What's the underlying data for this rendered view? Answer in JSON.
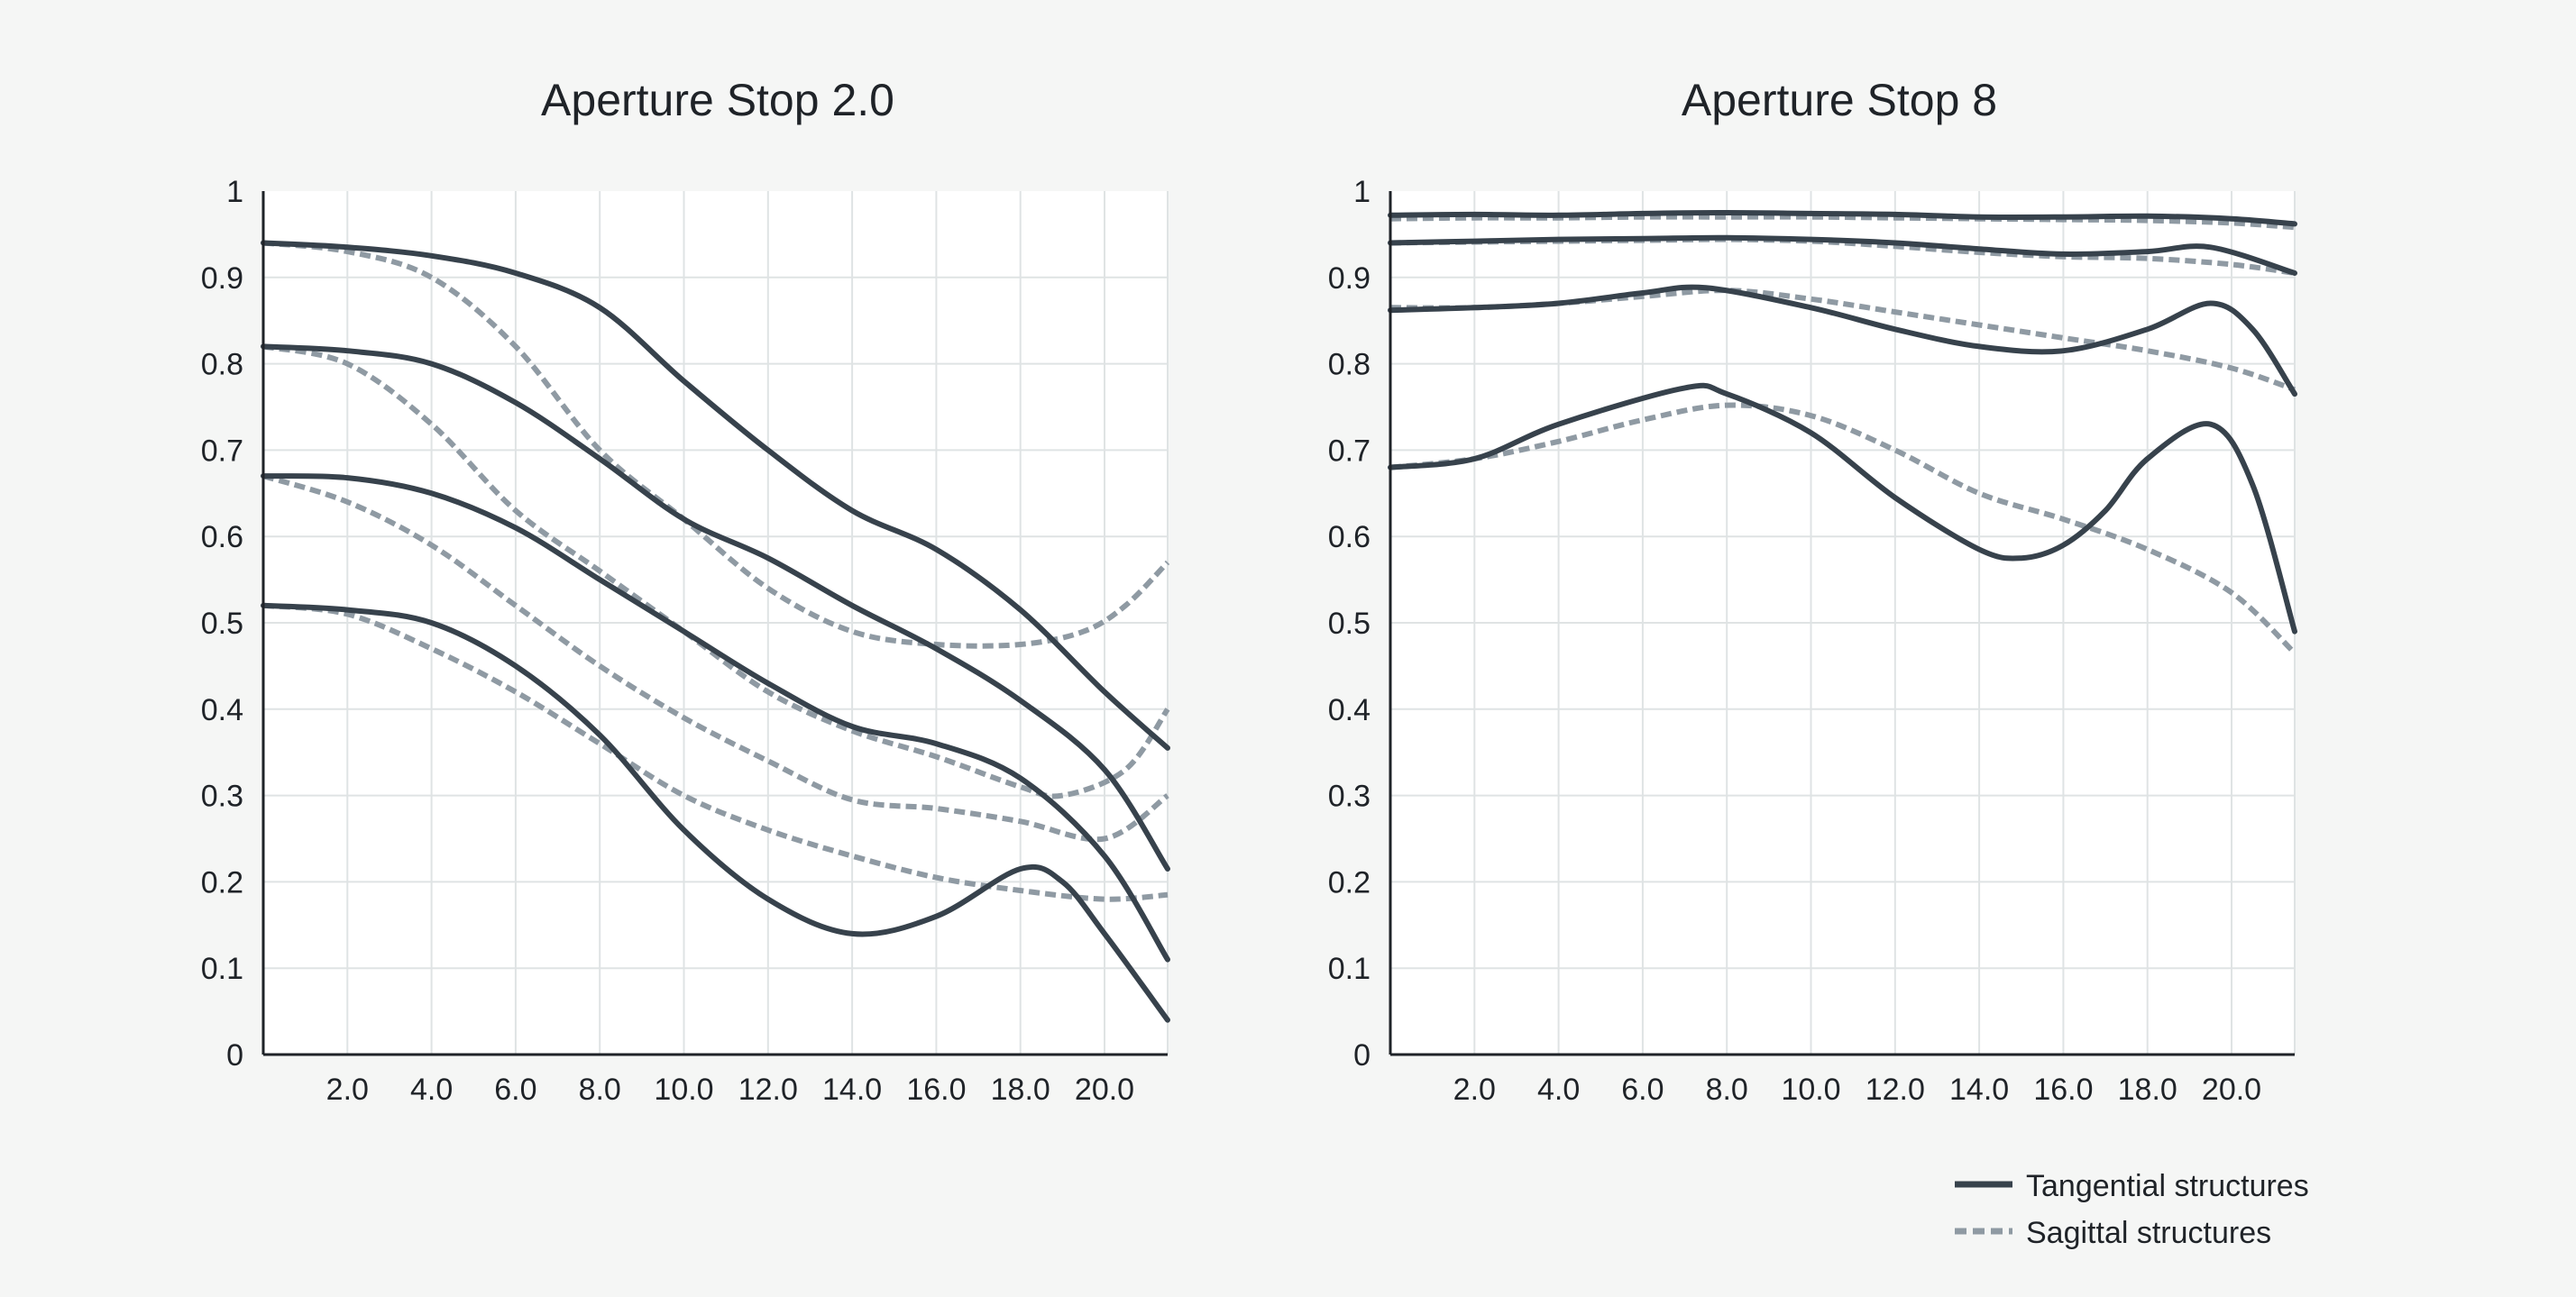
{
  "chart_data": [
    {
      "type": "line",
      "title": "Aperture Stop 2.0",
      "xlim": [
        0,
        21.5
      ],
      "ylim": [
        0,
        1
      ],
      "x_ticks": [
        "2.0",
        "4.0",
        "6.0",
        "8.0",
        "10.0",
        "12.0",
        "14.0",
        "16.0",
        "18.0",
        "20.0"
      ],
      "y_ticks": [
        "0",
        "0.1",
        "0.2",
        "0.3",
        "0.4",
        "0.5",
        "0.6",
        "0.7",
        "0.8",
        "0.9",
        "1"
      ],
      "grid": true,
      "series": [
        {
          "style": "tangential",
          "x": [
            0,
            2,
            4,
            6,
            8,
            10,
            12,
            14,
            16,
            18,
            20,
            21.5
          ],
          "y": [
            0.94,
            0.935,
            0.925,
            0.905,
            0.865,
            0.78,
            0.7,
            0.63,
            0.585,
            0.515,
            0.42,
            0.355
          ]
        },
        {
          "style": "sagittal",
          "x": [
            0,
            2,
            4,
            6,
            8,
            10,
            12,
            14,
            16,
            18,
            19.5,
            20.5,
            21.5
          ],
          "y": [
            0.94,
            0.93,
            0.9,
            0.82,
            0.7,
            0.62,
            0.54,
            0.49,
            0.475,
            0.475,
            0.49,
            0.52,
            0.57
          ]
        },
        {
          "style": "tangential",
          "x": [
            0,
            2,
            4,
            6,
            8,
            10,
            12,
            14,
            16,
            18,
            20,
            21.5
          ],
          "y": [
            0.82,
            0.815,
            0.8,
            0.755,
            0.69,
            0.62,
            0.575,
            0.52,
            0.47,
            0.41,
            0.33,
            0.215
          ]
        },
        {
          "style": "sagittal",
          "x": [
            0,
            2,
            4,
            6,
            8,
            10,
            12,
            14,
            16,
            18,
            19,
            20.5,
            21.5
          ],
          "y": [
            0.82,
            0.8,
            0.73,
            0.63,
            0.56,
            0.49,
            0.42,
            0.375,
            0.345,
            0.31,
            0.3,
            0.33,
            0.4
          ]
        },
        {
          "style": "tangential",
          "x": [
            0,
            2,
            4,
            6,
            8,
            10,
            12,
            14,
            16,
            18,
            20,
            21.5
          ],
          "y": [
            0.67,
            0.668,
            0.65,
            0.61,
            0.55,
            0.49,
            0.43,
            0.38,
            0.36,
            0.32,
            0.23,
            0.11
          ]
        },
        {
          "style": "sagittal",
          "x": [
            0,
            2,
            4,
            6,
            8,
            10,
            12,
            14,
            16,
            18,
            20,
            21.5
          ],
          "y": [
            0.67,
            0.64,
            0.59,
            0.52,
            0.45,
            0.39,
            0.34,
            0.295,
            0.285,
            0.27,
            0.25,
            0.3
          ]
        },
        {
          "style": "tangential",
          "x": [
            0,
            2,
            4,
            6,
            8,
            10,
            12,
            14,
            16,
            18,
            19,
            20,
            21.5
          ],
          "y": [
            0.52,
            0.515,
            0.5,
            0.45,
            0.37,
            0.26,
            0.18,
            0.14,
            0.16,
            0.215,
            0.2,
            0.14,
            0.04
          ]
        },
        {
          "style": "sagittal",
          "x": [
            0,
            2,
            4,
            6,
            8,
            10,
            12,
            14,
            16,
            18,
            20,
            21.5
          ],
          "y": [
            0.52,
            0.51,
            0.47,
            0.42,
            0.36,
            0.3,
            0.26,
            0.23,
            0.205,
            0.19,
            0.18,
            0.185
          ]
        }
      ]
    },
    {
      "type": "line",
      "title": "Aperture Stop 8",
      "xlim": [
        0,
        21.5
      ],
      "ylim": [
        0,
        1
      ],
      "x_ticks": [
        "2.0",
        "4.0",
        "6.0",
        "8.0",
        "10.0",
        "12.0",
        "14.0",
        "16.0",
        "18.0",
        "20.0"
      ],
      "y_ticks": [
        "0",
        "0.1",
        "0.2",
        "0.3",
        "0.4",
        "0.5",
        "0.6",
        "0.7",
        "0.8",
        "0.9",
        "1"
      ],
      "grid": true,
      "series": [
        {
          "style": "tangential",
          "x": [
            0,
            2,
            4,
            6,
            8,
            10,
            12,
            14,
            16,
            18,
            20,
            21.5
          ],
          "y": [
            0.972,
            0.973,
            0.972,
            0.974,
            0.975,
            0.974,
            0.973,
            0.97,
            0.97,
            0.971,
            0.968,
            0.962
          ]
        },
        {
          "style": "sagittal",
          "x": [
            0,
            2,
            4,
            6,
            8,
            10,
            12,
            14,
            16,
            18,
            20,
            21.5
          ],
          "y": [
            0.968,
            0.969,
            0.969,
            0.97,
            0.97,
            0.97,
            0.969,
            0.968,
            0.967,
            0.966,
            0.963,
            0.958
          ]
        },
        {
          "style": "tangential",
          "x": [
            0,
            2,
            4,
            6,
            8,
            10,
            12,
            14,
            16,
            18,
            19.5,
            21.5
          ],
          "y": [
            0.94,
            0.942,
            0.944,
            0.945,
            0.946,
            0.944,
            0.94,
            0.933,
            0.927,
            0.93,
            0.935,
            0.905
          ]
        },
        {
          "style": "sagittal",
          "x": [
            0,
            2,
            4,
            6,
            8,
            10,
            12,
            14,
            16,
            18,
            20,
            21.5
          ],
          "y": [
            0.94,
            0.941,
            0.942,
            0.943,
            0.944,
            0.942,
            0.936,
            0.929,
            0.924,
            0.922,
            0.915,
            0.905
          ]
        },
        {
          "style": "tangential",
          "x": [
            0,
            2,
            4,
            6,
            7.5,
            10,
            12,
            14,
            16,
            18,
            19.5,
            20.5,
            21.5
          ],
          "y": [
            0.862,
            0.865,
            0.87,
            0.882,
            0.888,
            0.865,
            0.84,
            0.82,
            0.815,
            0.84,
            0.87,
            0.84,
            0.765
          ]
        },
        {
          "style": "sagittal",
          "x": [
            0,
            2,
            4,
            6,
            8,
            10,
            12,
            14,
            16,
            18,
            20,
            21.5
          ],
          "y": [
            0.865,
            0.865,
            0.87,
            0.878,
            0.885,
            0.875,
            0.86,
            0.845,
            0.83,
            0.815,
            0.795,
            0.77
          ]
        },
        {
          "style": "tangential",
          "x": [
            0,
            2,
            4,
            7,
            8,
            10,
            12,
            14,
            15,
            16,
            17,
            18,
            19.5,
            20.5,
            21.5
          ],
          "y": [
            0.68,
            0.69,
            0.73,
            0.772,
            0.765,
            0.72,
            0.645,
            0.585,
            0.575,
            0.59,
            0.63,
            0.69,
            0.73,
            0.66,
            0.49
          ]
        },
        {
          "style": "sagittal",
          "x": [
            0,
            2,
            4,
            6,
            8,
            10,
            12,
            14,
            16,
            18,
            20,
            21.5
          ],
          "y": [
            0.68,
            0.69,
            0.71,
            0.735,
            0.752,
            0.74,
            0.7,
            0.65,
            0.62,
            0.585,
            0.535,
            0.465
          ]
        }
      ]
    }
  ],
  "legend": {
    "placement": "bottom-right",
    "tangential_label": "Tangential structures",
    "sagittal_label": "Sagittal structures"
  },
  "colors": {
    "tangential": "#37424c",
    "sagittal": "#8f9aa3",
    "grid": "#dfe3e4",
    "plot_background": "#ffffff",
    "page_background": "#f5f6f5"
  }
}
